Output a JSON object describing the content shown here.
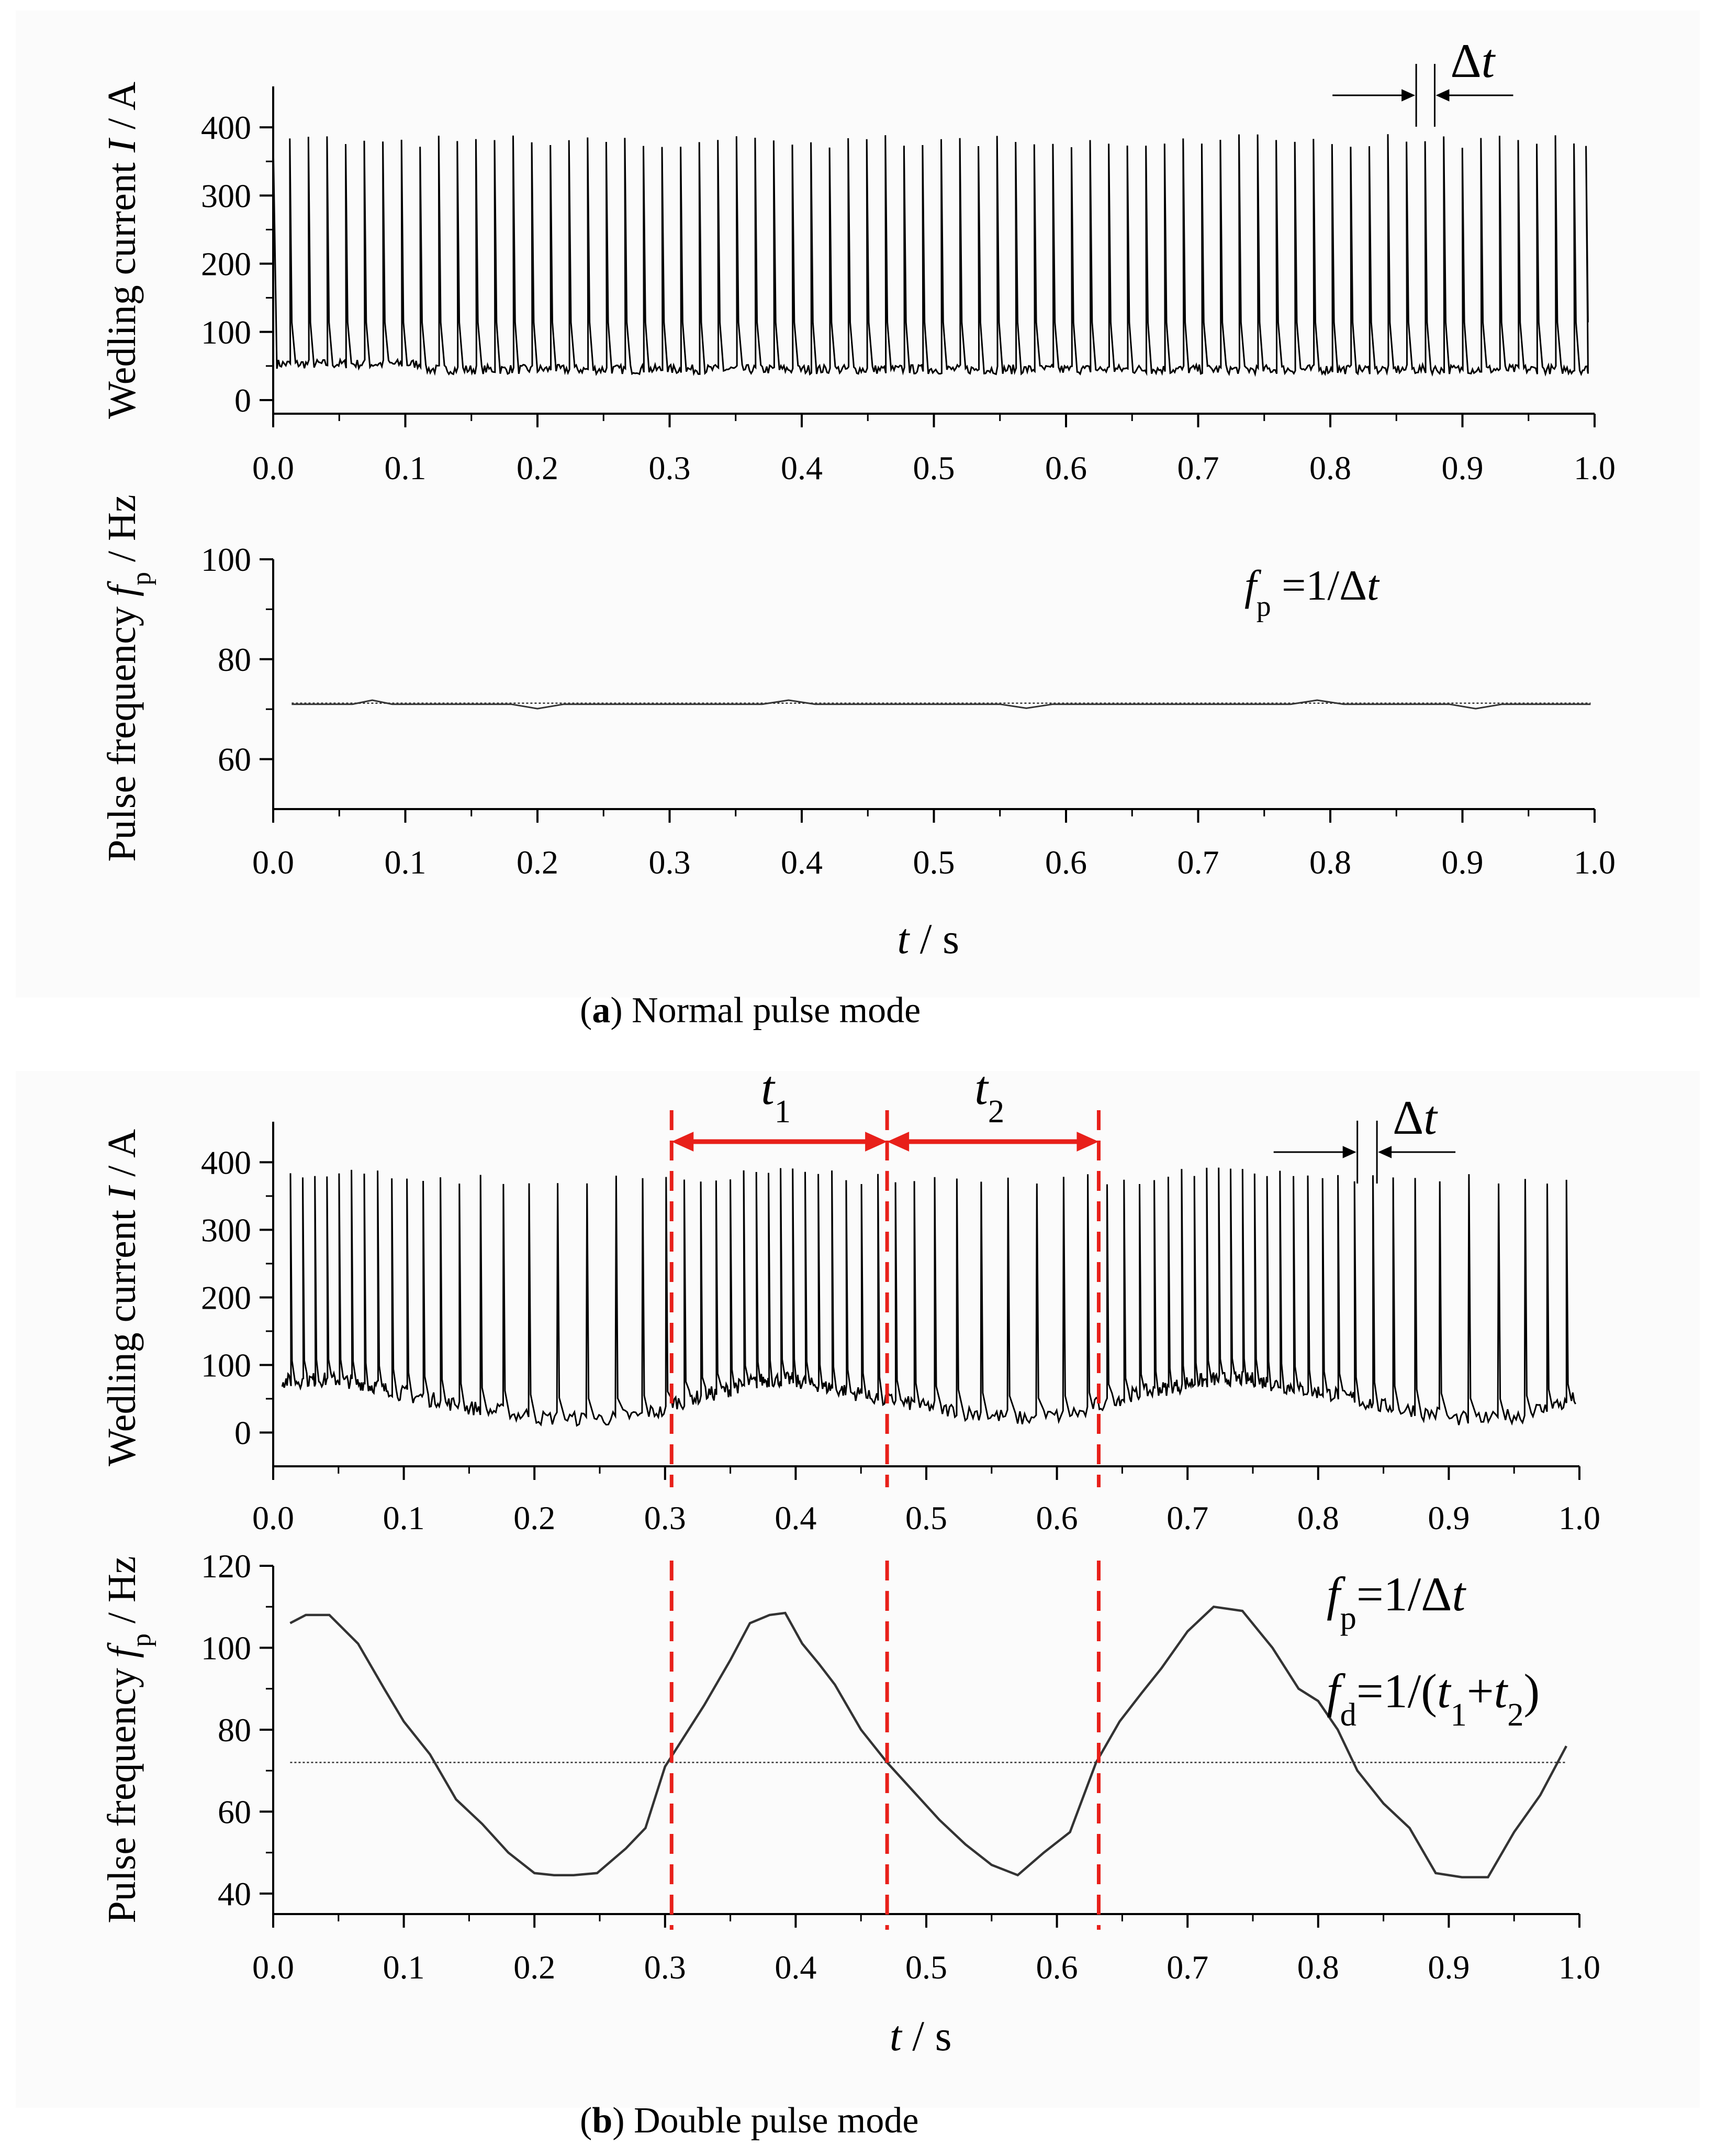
{
  "figure": {
    "caption_a": {
      "letter": "a",
      "text": "Normal pulse mode"
    },
    "caption_b": {
      "letter": "b",
      "text": "Double pulse mode"
    }
  },
  "chart_data": [
    {
      "id": "a-current",
      "type": "line",
      "panel": "a",
      "ylabel": "Wedling current I / A",
      "xlabel": "",
      "xlim": [
        0,
        1.0
      ],
      "ylim": [
        -20,
        460
      ],
      "x_ticks": [
        "0.0",
        "0.1",
        "0.2",
        "0.3",
        "0.4",
        "0.5",
        "0.6",
        "0.7",
        "0.8",
        "0.9",
        "1.0"
      ],
      "y_ticks": [
        "0",
        "100",
        "200",
        "300",
        "400"
      ],
      "y_tick_values": [
        0,
        100,
        200,
        300,
        400
      ],
      "series": [
        {
          "name": "Welding current",
          "kind": "pulse_train",
          "base_level": 45,
          "peak_level": 380,
          "pulse_rate_hz": 71,
          "pulse_count": 71
        }
      ],
      "annotations": [
        {
          "label": "Δt",
          "kind": "pulse-interval arrows",
          "x_start": 0.865,
          "x_end": 0.879
        }
      ]
    },
    {
      "id": "a-frequency",
      "type": "line",
      "panel": "a",
      "ylabel": "Pulse frequency fp / Hz",
      "xlabel": "t / s",
      "xlim": [
        0,
        1.0
      ],
      "ylim": [
        50,
        100
      ],
      "x_ticks": [
        "0.0",
        "0.1",
        "0.2",
        "0.3",
        "0.4",
        "0.5",
        "0.6",
        "0.7",
        "0.8",
        "0.9",
        "1.0"
      ],
      "y_ticks": [
        "60",
        "80",
        "100"
      ],
      "y_tick_values": [
        60,
        80,
        100
      ],
      "series": [
        {
          "name": "Pulse frequency",
          "x": [
            0.014,
            0.06,
            0.075,
            0.09,
            0.18,
            0.2,
            0.22,
            0.37,
            0.39,
            0.41,
            0.55,
            0.57,
            0.59,
            0.77,
            0.79,
            0.81,
            0.89,
            0.91,
            0.93,
            0.997
          ],
          "y": [
            71,
            71,
            71.8,
            71,
            71,
            70.1,
            71,
            71,
            71.8,
            71,
            71,
            70.2,
            71,
            71,
            71.8,
            71,
            71,
            70.1,
            71,
            71
          ]
        },
        {
          "name": "Mean frequency",
          "style": "dotted",
          "x": [
            0.014,
            0.997
          ],
          "y": [
            71.2,
            71.2
          ]
        }
      ],
      "annotations": [
        {
          "label": "fp =1/Δt",
          "position": "top-right"
        }
      ]
    },
    {
      "id": "b-current",
      "type": "line",
      "panel": "b",
      "ylabel": "Wedling current I / A",
      "xlabel": "",
      "xlim": [
        0,
        1.0
      ],
      "ylim": [
        -50,
        460
      ],
      "x_ticks": [
        "0.0",
        "0.1",
        "0.2",
        "0.3",
        "0.4",
        "0.5",
        "0.6",
        "0.7",
        "0.8",
        "0.9",
        "1.0"
      ],
      "y_ticks": [
        "0",
        "100",
        "200",
        "300",
        "400"
      ],
      "y_tick_values": [
        0,
        100,
        200,
        300,
        400
      ],
      "series": [
        {
          "name": "Welding current",
          "kind": "modulated_pulse_train",
          "peak_level": 375,
          "base_level_range": [
            20,
            80
          ],
          "modulation_period_s": 0.33,
          "freq_range_hz": [
            44,
            110
          ]
        }
      ],
      "markers": [
        {
          "x": 0.305,
          "style": "red dashed"
        },
        {
          "x": 0.47,
          "style": "red dashed"
        },
        {
          "x": 0.632,
          "style": "red dashed"
        }
      ],
      "annotations": [
        {
          "label": "t1",
          "x_start": 0.305,
          "x_end": 0.47,
          "style": "red double arrow"
        },
        {
          "label": "t2",
          "x_start": 0.47,
          "x_end": 0.632,
          "style": "red double arrow"
        },
        {
          "label": "Δt",
          "kind": "pulse-interval arrows",
          "x_start": 0.83,
          "x_end": 0.845
        }
      ]
    },
    {
      "id": "b-frequency",
      "type": "line",
      "panel": "b",
      "ylabel": "Pulse frequency fp / Hz",
      "xlabel": "t / s",
      "xlim": [
        0,
        1.0
      ],
      "ylim": [
        35,
        120
      ],
      "x_ticks": [
        "0.0",
        "0.1",
        "0.2",
        "0.3",
        "0.4",
        "0.5",
        "0.6",
        "0.7",
        "0.8",
        "0.9",
        "1.0"
      ],
      "y_ticks": [
        "40",
        "60",
        "80",
        "100",
        "120"
      ],
      "y_tick_values": [
        40,
        60,
        80,
        100,
        120
      ],
      "series": [
        {
          "name": "Pulse frequency",
          "x": [
            0.013,
            0.025,
            0.043,
            0.065,
            0.085,
            0.1,
            0.12,
            0.14,
            0.16,
            0.18,
            0.2,
            0.215,
            0.23,
            0.248,
            0.27,
            0.285,
            0.3,
            0.31,
            0.33,
            0.35,
            0.365,
            0.38,
            0.392,
            0.405,
            0.418,
            0.43,
            0.45,
            0.47,
            0.49,
            0.51,
            0.53,
            0.55,
            0.57,
            0.59,
            0.61,
            0.63,
            0.648,
            0.665,
            0.68,
            0.7,
            0.72,
            0.742,
            0.765,
            0.785,
            0.8,
            0.815,
            0.83,
            0.85,
            0.87,
            0.89,
            0.91,
            0.93,
            0.95,
            0.97,
            0.99
          ],
          "y": [
            106,
            108,
            108,
            101,
            90,
            82,
            74,
            63,
            57,
            50,
            45,
            44.5,
            44.5,
            45,
            51,
            56,
            71,
            76,
            86,
            97,
            106,
            108,
            108.5,
            101,
            96,
            91,
            80,
            72,
            65,
            58,
            52,
            47,
            44.5,
            50,
            55,
            72,
            82,
            89,
            95,
            104,
            110,
            109,
            100,
            90,
            87,
            80,
            70,
            62,
            56,
            45,
            44,
            44,
            55,
            64,
            76
          ]
        },
        {
          "name": "Mean frequency",
          "style": "dotted",
          "x": [
            0.013,
            0.99
          ],
          "y": [
            72,
            72
          ]
        }
      ],
      "markers": [
        {
          "x": 0.305,
          "style": "red dashed"
        },
        {
          "x": 0.47,
          "style": "red dashed"
        },
        {
          "x": 0.632,
          "style": "red dashed"
        }
      ],
      "annotations": [
        {
          "label": "fp=1/Δt",
          "position": "top-right"
        },
        {
          "label": "fd=1/(t1+t2)",
          "position": "top-right"
        }
      ]
    }
  ]
}
